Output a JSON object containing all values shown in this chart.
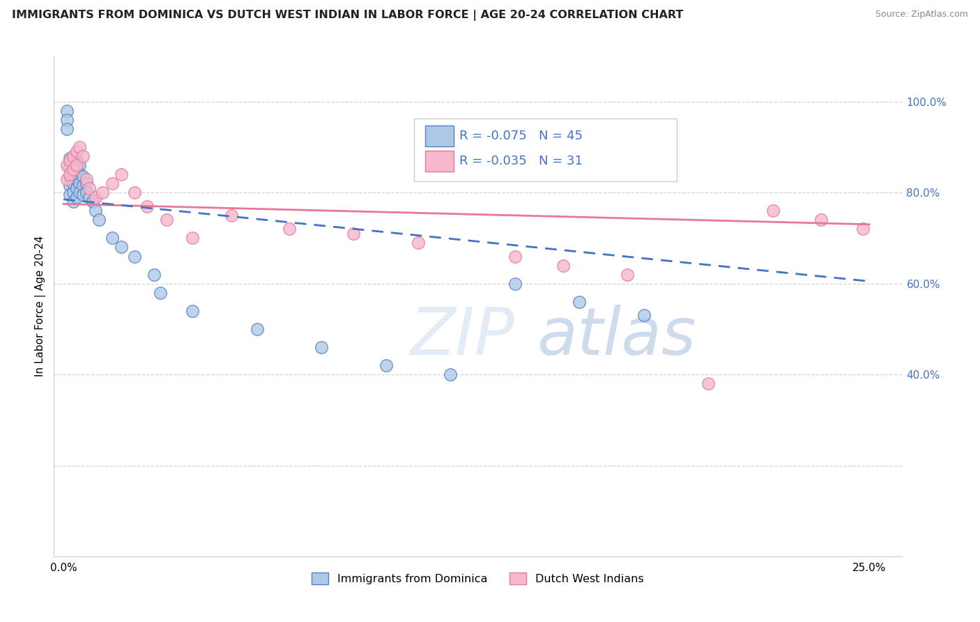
{
  "title": "IMMIGRANTS FROM DOMINICA VS DUTCH WEST INDIAN IN LABOR FORCE | AGE 20-24 CORRELATION CHART",
  "source": "Source: ZipAtlas.com",
  "ylabel": "In Labor Force | Age 20-24",
  "xlim_min": -0.003,
  "xlim_max": 0.26,
  "ylim_min": 0.0,
  "ylim_max": 1.1,
  "blue_R": -0.075,
  "blue_N": 45,
  "pink_R": -0.035,
  "pink_N": 31,
  "blue_fill": "#aec8e8",
  "blue_edge": "#5580c0",
  "pink_fill": "#f5b8cc",
  "pink_edge": "#e87898",
  "blue_line_color": "#4472c4",
  "pink_line_color": "#e87898",
  "axis_label_color": "#4472c4",
  "legend1": "Immigrants from Dominica",
  "legend2": "Dutch West Indians",
  "right_yticks": [
    0.4,
    0.6,
    0.8,
    1.0
  ],
  "right_yticklabels": [
    "40.0%",
    "60.0%",
    "80.0%",
    "100.0%"
  ],
  "xtick_vals": [
    0.0,
    0.25
  ],
  "xtick_labels": [
    "0.0%",
    "25.0%"
  ],
  "blue_line_x0": 0.0,
  "blue_line_y0": 0.785,
  "blue_line_x1": 0.25,
  "blue_line_y1": 0.605,
  "pink_line_x0": 0.0,
  "pink_line_y0": 0.775,
  "pink_line_x1": 0.25,
  "pink_line_y1": 0.73,
  "blue_x": [
    0.001,
    0.001,
    0.001,
    0.002,
    0.002,
    0.002,
    0.002,
    0.002,
    0.003,
    0.003,
    0.003,
    0.003,
    0.003,
    0.003,
    0.004,
    0.004,
    0.004,
    0.004,
    0.004,
    0.005,
    0.005,
    0.005,
    0.005,
    0.006,
    0.006,
    0.006,
    0.007,
    0.007,
    0.008,
    0.009,
    0.01,
    0.011,
    0.015,
    0.018,
    0.022,
    0.028,
    0.03,
    0.04,
    0.06,
    0.08,
    0.1,
    0.12,
    0.14,
    0.16,
    0.18
  ],
  "blue_y": [
    0.98,
    0.96,
    0.94,
    0.875,
    0.855,
    0.835,
    0.815,
    0.795,
    0.88,
    0.86,
    0.84,
    0.82,
    0.8,
    0.78,
    0.87,
    0.85,
    0.83,
    0.81,
    0.79,
    0.86,
    0.84,
    0.82,
    0.8,
    0.835,
    0.815,
    0.795,
    0.82,
    0.8,
    0.79,
    0.78,
    0.76,
    0.74,
    0.7,
    0.68,
    0.66,
    0.62,
    0.58,
    0.54,
    0.5,
    0.46,
    0.42,
    0.4,
    0.6,
    0.56,
    0.53
  ],
  "pink_x": [
    0.001,
    0.001,
    0.002,
    0.002,
    0.003,
    0.003,
    0.004,
    0.004,
    0.005,
    0.006,
    0.007,
    0.008,
    0.01,
    0.012,
    0.015,
    0.018,
    0.022,
    0.026,
    0.032,
    0.04,
    0.052,
    0.07,
    0.09,
    0.11,
    0.14,
    0.155,
    0.175,
    0.2,
    0.22,
    0.235,
    0.248
  ],
  "pink_y": [
    0.86,
    0.83,
    0.87,
    0.84,
    0.88,
    0.85,
    0.89,
    0.86,
    0.9,
    0.88,
    0.83,
    0.81,
    0.79,
    0.8,
    0.82,
    0.84,
    0.8,
    0.77,
    0.74,
    0.7,
    0.75,
    0.72,
    0.71,
    0.69,
    0.66,
    0.64,
    0.62,
    0.38,
    0.76,
    0.74,
    0.72
  ]
}
